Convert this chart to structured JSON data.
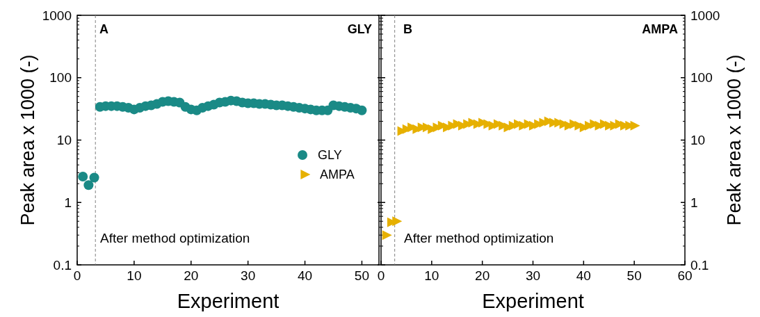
{
  "chart_data": [
    {
      "type": "scatter",
      "xlabel": "Experiment",
      "ylabel": "Peak area x 1000 (-)",
      "log": "y",
      "xlim": [
        0,
        53
      ],
      "xticks": [
        0,
        10,
        20,
        30,
        40,
        50
      ],
      "ylim": [
        0.1,
        1000
      ],
      "yticks": [
        0.1,
        1,
        10,
        100,
        1000
      ],
      "marker": "circle",
      "legend": "right",
      "grid": false,
      "annotations": [
        {
          "text": "A"
        },
        {
          "text": "GLY"
        },
        {
          "text": "After method optimization"
        }
      ],
      "ref_lines": [
        {
          "axis": "x",
          "value": 3.2,
          "line_style": "dashed",
          "color": "#808080"
        }
      ],
      "series": [
        {
          "name": "GLY",
          "color": "#1a8a86",
          "x": [
            1,
            2,
            3,
            4,
            5,
            6,
            7,
            8,
            9,
            10,
            11,
            12,
            13,
            14,
            15,
            16,
            17,
            18,
            19,
            20,
            21,
            22,
            23,
            24,
            25,
            26,
            27,
            28,
            29,
            30,
            31,
            32,
            33,
            34,
            35,
            36,
            37,
            38,
            39,
            40,
            41,
            42,
            43,
            44,
            45,
            46,
            47,
            48,
            49,
            50
          ],
          "values": [
            2.6,
            1.9,
            2.5,
            34,
            35,
            35,
            35,
            34,
            33,
            31,
            33,
            35,
            36,
            38,
            41,
            42,
            41,
            40,
            34,
            31,
            30,
            33,
            35,
            37,
            40,
            41,
            43,
            42,
            40,
            39,
            39,
            38,
            38,
            37,
            36,
            36,
            35,
            34,
            33,
            32,
            31,
            30,
            30,
            30,
            36,
            35,
            34,
            33,
            32,
            30
          ]
        }
      ]
    },
    {
      "type": "scatter",
      "xlabel": "Experiment",
      "y2label": "Peak area x 1000 (-)",
      "log": "y2",
      "xlim": [
        0,
        60
      ],
      "xticks": [
        0,
        10,
        20,
        30,
        40,
        50,
        60
      ],
      "y2lim": [
        0.1,
        1000
      ],
      "y2ticks": [
        0.1,
        1,
        10,
        100,
        1000
      ],
      "marker": "triangle",
      "legend": "left",
      "grid": false,
      "annotations": [
        {
          "text": "B"
        },
        {
          "text": "AMPA"
        },
        {
          "text": "After method optimization"
        }
      ],
      "ref_lines": [
        {
          "axis": "x",
          "value": 2.7,
          "line_style": "dashed",
          "color": "#808080"
        }
      ],
      "series": [
        {
          "name": "AMPA",
          "color": "#e6b000",
          "axis": "y2",
          "x": [
            1,
            2,
            3,
            4,
            5,
            6,
            7,
            8,
            9,
            10,
            11,
            12,
            13,
            14,
            15,
            16,
            17,
            18,
            19,
            20,
            21,
            22,
            23,
            24,
            25,
            26,
            27,
            28,
            29,
            30,
            31,
            32,
            33,
            34,
            35,
            36,
            37,
            38,
            39,
            40,
            41,
            42,
            43,
            44,
            45,
            46,
            47,
            48,
            49,
            50
          ],
          "values": [
            0.3,
            0.48,
            0.5,
            14,
            15,
            16,
            15,
            16,
            16,
            15,
            16,
            17,
            16,
            17,
            18,
            17,
            18,
            19,
            18,
            19,
            18,
            17,
            18,
            17,
            16,
            17,
            18,
            17,
            18,
            17,
            18,
            19,
            20,
            19,
            19,
            18,
            17,
            18,
            17,
            16,
            17,
            18,
            17,
            18,
            17,
            17,
            18,
            17,
            17,
            17
          ]
        }
      ]
    }
  ]
}
